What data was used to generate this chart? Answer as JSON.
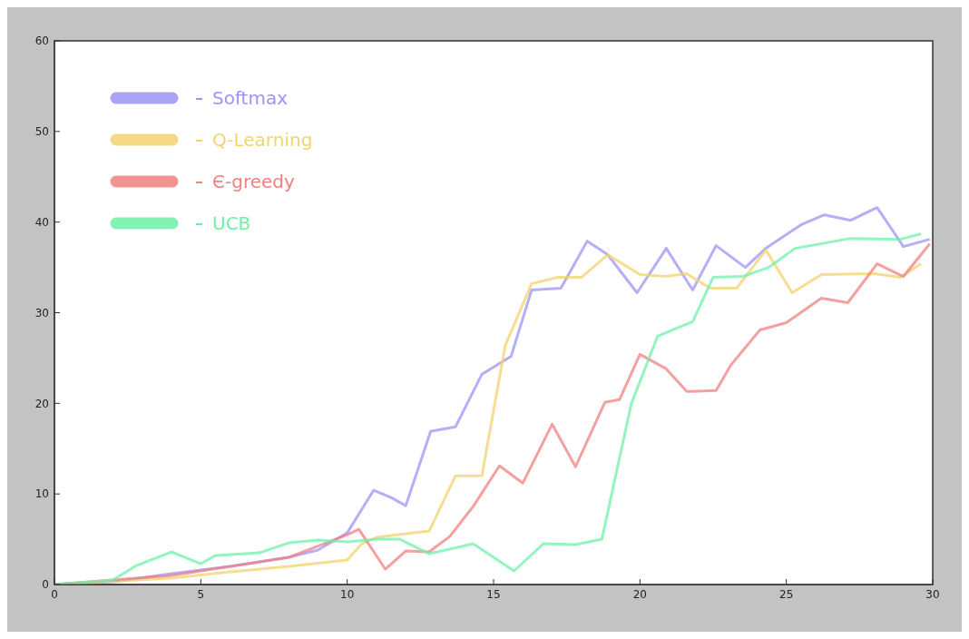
{
  "chart_data": {
    "type": "line",
    "xlim": [
      0,
      30
    ],
    "ylim": [
      0,
      60
    ],
    "xticks": [
      0,
      5,
      10,
      15,
      20,
      25,
      30
    ],
    "yticks": [
      0,
      10,
      20,
      30,
      40,
      50,
      60
    ],
    "legend": "top left",
    "marker": "none",
    "line_style": "solid",
    "series": [
      {
        "name": "Softmax",
        "color": "#9b94f4",
        "x": [
          0,
          2,
          4,
          6,
          8,
          9,
          10,
          10.9,
          11.5,
          12,
          12.85,
          13.7,
          14.6,
          15.6,
          16.3,
          17.3,
          18.2,
          18.9,
          19.9,
          20.9,
          21.8,
          22.6,
          23.6,
          24.3,
          25.5,
          26.3,
          27.2,
          28.1,
          29,
          29.9
        ],
        "values": [
          0,
          0.3,
          1.2,
          2,
          3,
          3.8,
          5.7,
          10.4,
          9.6,
          8.7,
          16.9,
          17.4,
          23.2,
          25.2,
          32.5,
          32.7,
          37.9,
          36.4,
          32.2,
          37.1,
          32.5,
          37.4,
          35,
          37.1,
          39.7,
          40.8,
          40.2,
          41.6,
          37.3,
          38.1
        ]
      },
      {
        "name": "Q-Learning",
        "color": "#f2d36e",
        "x": [
          0,
          4,
          6,
          8,
          10,
          10.5,
          11,
          12,
          12.8,
          13.7,
          14.6,
          15.4,
          16.3,
          17.2,
          18,
          18.9,
          20,
          20.9,
          21.6,
          22.4,
          23.3,
          24.3,
          25.2,
          26.2,
          28,
          28.9,
          29.6
        ],
        "values": [
          0,
          0.7,
          1.4,
          2,
          2.7,
          4.5,
          5.2,
          5.6,
          5.9,
          12,
          12,
          26.4,
          33.2,
          33.9,
          33.9,
          36.4,
          34.2,
          34,
          34.3,
          32.7,
          32.7,
          36.9,
          32.2,
          34.2,
          34.3,
          33.9,
          35.4
        ]
      },
      {
        "name": "Є-greedy",
        "color": "#f08080",
        "x": [
          0,
          4,
          6,
          8,
          10,
          10.4,
          11.3,
          12,
          12.8,
          13.5,
          14.3,
          15.2,
          16,
          17,
          17.8,
          18.8,
          19.3,
          20,
          20.9,
          21.6,
          22.6,
          23.1,
          24.1,
          25,
          26.2,
          27.1,
          28.1,
          29,
          29.9
        ],
        "values": [
          0,
          1,
          2,
          3,
          5.5,
          6.1,
          1.7,
          3.7,
          3.6,
          5.3,
          8.6,
          13.1,
          11.2,
          17.7,
          13,
          20.1,
          20.4,
          25.4,
          23.8,
          21.3,
          21.4,
          24.2,
          28.1,
          28.9,
          31.6,
          31.1,
          35.4,
          34,
          37.6
        ]
      },
      {
        "name": "UCB",
        "color": "#6ef0a8",
        "x": [
          0,
          2,
          2.8,
          4,
          5,
          5.5,
          7,
          8,
          9,
          10,
          11,
          11.8,
          12.8,
          14.3,
          15.7,
          16.7,
          17.8,
          18.7,
          19.7,
          20.6,
          21.8,
          22.5,
          23.5,
          24.4,
          25.3,
          27.2,
          28.9,
          29.6
        ],
        "values": [
          0,
          0.5,
          2.1,
          3.6,
          2.3,
          3.2,
          3.5,
          4.6,
          4.9,
          4.7,
          5,
          5,
          3.4,
          4.5,
          1.5,
          4.5,
          4.4,
          5,
          19.9,
          27.4,
          29,
          33.9,
          34,
          35,
          37.1,
          38.2,
          38.1,
          38.7
        ]
      }
    ]
  }
}
